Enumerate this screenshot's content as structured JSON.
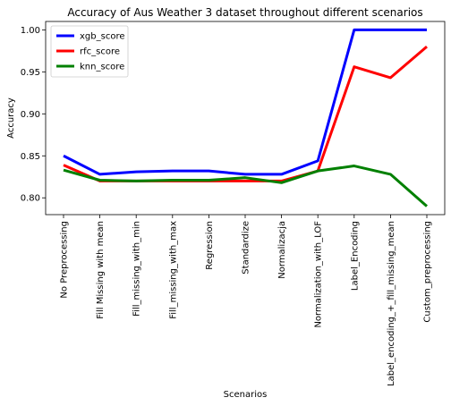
{
  "chart_data": {
    "type": "line",
    "title": "Accuracy of Aus Weather 3 dataset throughout different scenarios",
    "xlabel": "Scenarios",
    "ylabel": "Accuracy",
    "ylim": [
      0.78,
      1.01
    ],
    "yticks": [
      0.8,
      0.85,
      0.9,
      0.95,
      1.0
    ],
    "ytick_labels": [
      "0.80",
      "0.85",
      "0.90",
      "0.95",
      "1.00"
    ],
    "grid": false,
    "legend_position": "top-left",
    "categories": [
      "No Preprocessing",
      "Fill Missing with mean",
      "Fill_missing_with_min",
      "Fill_missing_with_max",
      "Regression",
      "Standardize",
      "Normalizacja",
      "Normalization_with_LOF",
      "Label_Encoding",
      "Label_encoding_+_fill_missing_mean",
      "Custom_preprocessing"
    ],
    "series": [
      {
        "name": "xgb_score",
        "color": "#0000ff",
        "values": [
          0.85,
          0.828,
          0.831,
          0.832,
          0.832,
          0.828,
          0.828,
          0.844,
          1.0,
          1.0,
          1.0
        ]
      },
      {
        "name": "rfc_score",
        "color": "#ff0000",
        "values": [
          0.839,
          0.82,
          0.82,
          0.82,
          0.82,
          0.82,
          0.82,
          0.832,
          0.956,
          0.943,
          0.98
        ]
      },
      {
        "name": "knn_score",
        "color": "#008000",
        "values": [
          0.833,
          0.821,
          0.82,
          0.821,
          0.821,
          0.824,
          0.818,
          0.832,
          0.838,
          0.828,
          0.79
        ]
      }
    ]
  }
}
